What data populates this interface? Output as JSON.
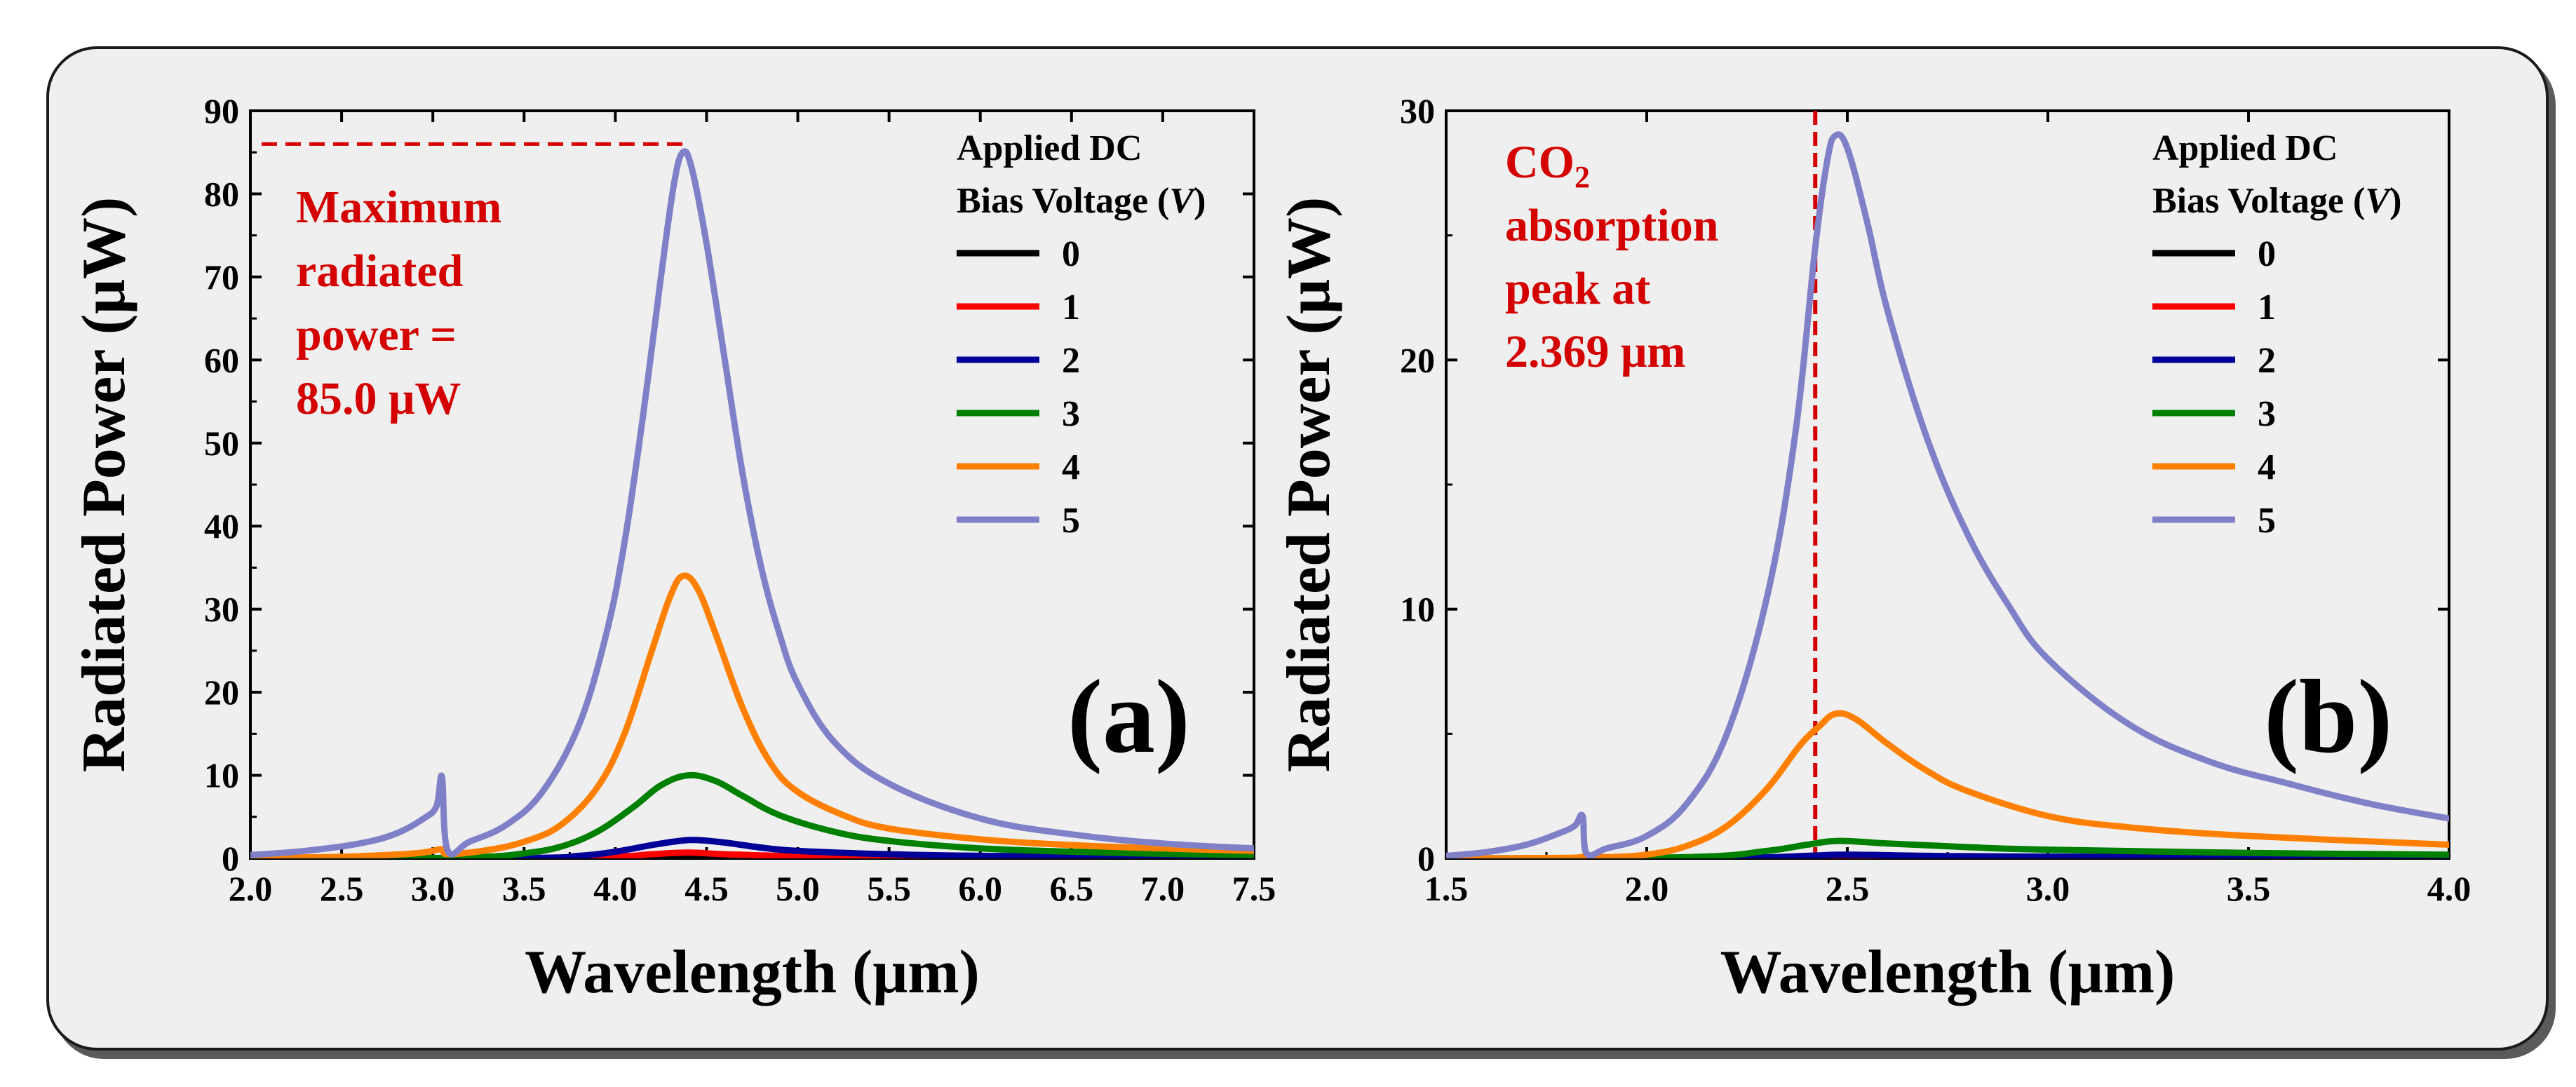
{
  "chart_data": [
    {
      "panel": "(a)",
      "type": "line",
      "xlabel": "Wavelength (μm)",
      "ylabel": "Radiated Power (μW)",
      "xlim": [
        2.0,
        7.5
      ],
      "ylim": [
        0,
        90
      ],
      "xticks": [
        2.0,
        2.5,
        3.0,
        3.5,
        4.0,
        4.5,
        5.0,
        5.5,
        6.0,
        6.5,
        7.0,
        7.5
      ],
      "yticks": [
        0,
        10,
        20,
        30,
        40,
        50,
        60,
        70,
        80,
        90
      ],
      "legend_title": [
        "Applied DC",
        "Bias Voltage ("
      ],
      "legend_title_var": "V",
      "legend_title_close": ")",
      "legend_location": "top-right",
      "series": [
        {
          "name": "0",
          "color": "#000000",
          "points": [
            [
              2.0,
              0
            ],
            [
              3.0,
              0
            ],
            [
              4.0,
              0
            ],
            [
              5.0,
              0
            ],
            [
              6.0,
              0
            ],
            [
              7.5,
              0
            ]
          ]
        },
        {
          "name": "1",
          "color": "#ff0000",
          "points": [
            [
              2.0,
              0
            ],
            [
              3.5,
              0.01
            ],
            [
              4.0,
              0.2
            ],
            [
              4.2,
              0.5
            ],
            [
              4.4,
              0.7
            ],
            [
              4.6,
              0.5
            ],
            [
              5.0,
              0.25
            ],
            [
              5.5,
              0.12
            ],
            [
              6.0,
              0.07
            ],
            [
              7.0,
              0.03
            ],
            [
              7.5,
              0.02
            ]
          ]
        },
        {
          "name": "2",
          "color": "#000099",
          "points": [
            [
              2.0,
              0
            ],
            [
              3.5,
              0.05
            ],
            [
              3.8,
              0.3
            ],
            [
              4.0,
              0.8
            ],
            [
              4.2,
              1.6
            ],
            [
              4.35,
              2.1
            ],
            [
              4.45,
              2.2
            ],
            [
              4.6,
              1.9
            ],
            [
              4.8,
              1.3
            ],
            [
              5.0,
              0.9
            ],
            [
              5.5,
              0.5
            ],
            [
              6.0,
              0.3
            ],
            [
              7.0,
              0.15
            ],
            [
              7.5,
              0.1
            ]
          ]
        },
        {
          "name": "3",
          "color": "#008000",
          "points": [
            [
              2.0,
              0
            ],
            [
              3.0,
              0.05
            ],
            [
              3.3,
              0.2
            ],
            [
              3.5,
              0.6
            ],
            [
              3.7,
              1.4
            ],
            [
              3.9,
              3.2
            ],
            [
              4.1,
              6.2
            ],
            [
              4.25,
              8.8
            ],
            [
              4.4,
              10.0
            ],
            [
              4.55,
              9.3
            ],
            [
              4.7,
              7.5
            ],
            [
              4.9,
              5.2
            ],
            [
              5.2,
              3.2
            ],
            [
              5.5,
              2.1
            ],
            [
              6.0,
              1.2
            ],
            [
              6.5,
              0.8
            ],
            [
              7.0,
              0.55
            ],
            [
              7.5,
              0.4
            ]
          ]
        },
        {
          "name": "4",
          "color": "#ff8000",
          "points": [
            [
              2.0,
              0.05
            ],
            [
              2.5,
              0.2
            ],
            [
              2.9,
              0.6
            ],
            [
              3.05,
              1.1
            ],
            [
              3.08,
              0.5
            ],
            [
              3.3,
              1.0
            ],
            [
              3.5,
              2.0
            ],
            [
              3.7,
              4.0
            ],
            [
              3.9,
              8.5
            ],
            [
              4.05,
              15.0
            ],
            [
              4.2,
              25.0
            ],
            [
              4.3,
              31.5
            ],
            [
              4.37,
              34.0
            ],
            [
              4.45,
              32.5
            ],
            [
              4.55,
              27.0
            ],
            [
              4.7,
              18.0
            ],
            [
              4.85,
              11.5
            ],
            [
              5.0,
              8.0
            ],
            [
              5.25,
              5.2
            ],
            [
              5.5,
              3.6
            ],
            [
              6.0,
              2.3
            ],
            [
              6.5,
              1.6
            ],
            [
              7.0,
              1.2
            ],
            [
              7.5,
              0.9
            ]
          ]
        },
        {
          "name": "5",
          "color": "#8080c8",
          "points": [
            [
              2.0,
              0.4
            ],
            [
              2.3,
              0.9
            ],
            [
              2.6,
              1.8
            ],
            [
              2.8,
              3.0
            ],
            [
              2.95,
              4.8
            ],
            [
              3.02,
              6.3
            ],
            [
              3.05,
              9.8
            ],
            [
              3.08,
              1.0
            ],
            [
              3.2,
              2.0
            ],
            [
              3.4,
              4.0
            ],
            [
              3.6,
              8.0
            ],
            [
              3.8,
              16.0
            ],
            [
              3.95,
              27.0
            ],
            [
              4.05,
              38.0
            ],
            [
              4.15,
              53.0
            ],
            [
              4.25,
              70.0
            ],
            [
              4.32,
              81.0
            ],
            [
              4.37,
              85.0
            ],
            [
              4.42,
              83.0
            ],
            [
              4.5,
              74.0
            ],
            [
              4.6,
              60.0
            ],
            [
              4.7,
              46.0
            ],
            [
              4.8,
              35.0
            ],
            [
              4.9,
              27.0
            ],
            [
              5.0,
              21.0
            ],
            [
              5.2,
              14.0
            ],
            [
              5.5,
              9.0
            ],
            [
              6.0,
              4.8
            ],
            [
              6.5,
              2.9
            ],
            [
              7.0,
              1.8
            ],
            [
              7.5,
              1.2
            ]
          ]
        }
      ],
      "annotation": {
        "lines": [
          "Maximum",
          "radiated",
          "power =",
          "85.0 μW"
        ],
        "color": "#d40000",
        "dashed_level": 86
      },
      "panel_label": "(a)"
    },
    {
      "panel": "(b)",
      "type": "line",
      "xlabel": "Wavelength (μm)",
      "ylabel": "Radiated Power (μW)",
      "xlim": [
        1.5,
        4.0
      ],
      "ylim": [
        0,
        30
      ],
      "xticks": [
        1.5,
        2.0,
        2.5,
        3.0,
        3.5,
        4.0
      ],
      "yticks": [
        0,
        10,
        20,
        30
      ],
      "legend_title": [
        "Applied DC",
        "Bias Voltage ("
      ],
      "legend_title_var": "V",
      "legend_title_close": ")",
      "legend_location": "top-right",
      "series": [
        {
          "name": "0",
          "color": "#000000",
          "points": [
            [
              1.5,
              0
            ],
            [
              2.5,
              0
            ],
            [
              3.0,
              0
            ],
            [
              4.0,
              0
            ]
          ]
        },
        {
          "name": "1",
          "color": "#ff0000",
          "points": [
            [
              1.5,
              0
            ],
            [
              2.3,
              0.01
            ],
            [
              2.5,
              0.05
            ],
            [
              3.0,
              0.02
            ],
            [
              4.0,
              0.01
            ]
          ]
        },
        {
          "name": "2",
          "color": "#000099",
          "points": [
            [
              1.5,
              0
            ],
            [
              2.2,
              0.02
            ],
            [
              2.4,
              0.1
            ],
            [
              2.5,
              0.15
            ],
            [
              2.7,
              0.1
            ],
            [
              3.0,
              0.07
            ],
            [
              4.0,
              0.03
            ]
          ]
        },
        {
          "name": "3",
          "color": "#008000",
          "points": [
            [
              1.5,
              0
            ],
            [
              2.1,
              0.05
            ],
            [
              2.3,
              0.3
            ],
            [
              2.4,
              0.55
            ],
            [
              2.48,
              0.7
            ],
            [
              2.6,
              0.6
            ],
            [
              2.8,
              0.45
            ],
            [
              3.0,
              0.35
            ],
            [
              3.5,
              0.22
            ],
            [
              4.0,
              0.15
            ]
          ]
        },
        {
          "name": "4",
          "color": "#ff8000",
          "points": [
            [
              1.5,
              0
            ],
            [
              1.8,
              0.02
            ],
            [
              1.85,
              0.1
            ],
            [
              1.9,
              0.05
            ],
            [
              2.0,
              0.15
            ],
            [
              2.1,
              0.5
            ],
            [
              2.2,
              1.3
            ],
            [
              2.3,
              2.8
            ],
            [
              2.38,
              4.5
            ],
            [
              2.43,
              5.3
            ],
            [
              2.47,
              5.8
            ],
            [
              2.52,
              5.6
            ],
            [
              2.6,
              4.6
            ],
            [
              2.7,
              3.5
            ],
            [
              2.8,
              2.7
            ],
            [
              3.0,
              1.7
            ],
            [
              3.2,
              1.25
            ],
            [
              3.5,
              0.9
            ],
            [
              4.0,
              0.55
            ]
          ]
        },
        {
          "name": "5",
          "color": "#8080c8",
          "points": [
            [
              1.5,
              0.1
            ],
            [
              1.6,
              0.25
            ],
            [
              1.7,
              0.55
            ],
            [
              1.78,
              1.0
            ],
            [
              1.82,
              1.3
            ],
            [
              1.84,
              1.7
            ],
            [
              1.85,
              0.2
            ],
            [
              1.9,
              0.4
            ],
            [
              2.0,
              0.9
            ],
            [
              2.1,
              2.2
            ],
            [
              2.2,
              5.0
            ],
            [
              2.3,
              10.5
            ],
            [
              2.37,
              17.0
            ],
            [
              2.42,
              24.5
            ],
            [
              2.45,
              28.0
            ],
            [
              2.47,
              29.0
            ],
            [
              2.5,
              28.5
            ],
            [
              2.55,
              25.5
            ],
            [
              2.6,
              22.0
            ],
            [
              2.7,
              16.8
            ],
            [
              2.8,
              13.0
            ],
            [
              2.9,
              10.2
            ],
            [
              3.0,
              8.0
            ],
            [
              3.2,
              5.4
            ],
            [
              3.4,
              3.9
            ],
            [
              3.6,
              3.0
            ],
            [
              3.8,
              2.2
            ],
            [
              4.0,
              1.6
            ]
          ]
        }
      ],
      "annotation": {
        "line1_main": "CO",
        "line1_sub": "2",
        "lines": [
          "absorption",
          "peak at",
          "2.369 μm"
        ],
        "color": "#d40000",
        "vline_x": 2.42
      },
      "panel_label": "(b)"
    }
  ]
}
